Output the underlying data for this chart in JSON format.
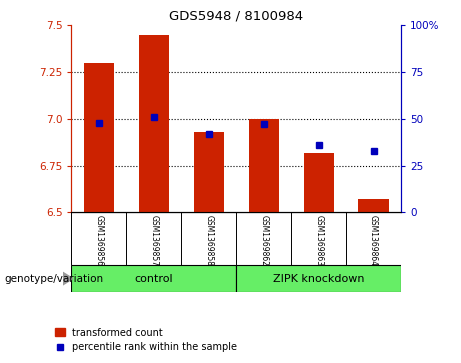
{
  "title": "GDS5948 / 8100984",
  "samples": [
    "GSM1369856",
    "GSM1369857",
    "GSM1369858",
    "GSM1369862",
    "GSM1369863",
    "GSM1369864"
  ],
  "red_values": [
    7.3,
    7.45,
    6.93,
    7.0,
    6.82,
    6.57
  ],
  "blue_percentiles": [
    48,
    51,
    42,
    47,
    36,
    33
  ],
  "ylim_left": [
    6.5,
    7.5
  ],
  "ylim_right": [
    0,
    100
  ],
  "yticks_left": [
    6.5,
    6.75,
    7.0,
    7.25,
    7.5
  ],
  "yticks_right": [
    0,
    25,
    50,
    75,
    100
  ],
  "bar_color": "#CC2200",
  "dot_color": "#0000BB",
  "base_value": 6.5,
  "legend_red_label": "transformed count",
  "legend_blue_label": "percentile rank within the sample",
  "genotype_label": "genotype/variation",
  "bg_color": "#FFFFFF",
  "plot_bg_color": "#FFFFFF",
  "tick_label_color_left": "#CC2200",
  "tick_label_color_right": "#0000BB",
  "sample_box_color": "#C8C8C8",
  "group_color": "#66EE66",
  "dotted_grid_color": "#000000",
  "control_label": "control",
  "zipk_label": "ZIPK knockdown"
}
